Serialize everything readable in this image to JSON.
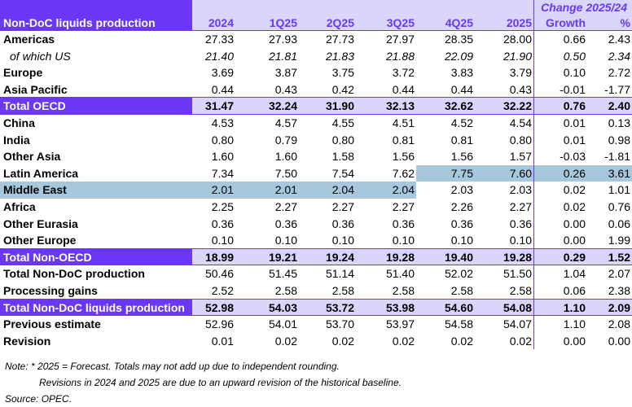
{
  "table": {
    "title": "Non-DoC liquids production",
    "change_header": "Change 2025/24",
    "columns": [
      "2024",
      "1Q25",
      "2Q25",
      "3Q25",
      "4Q25",
      "2025",
      "Growth",
      "%"
    ],
    "rows": [
      {
        "label": "Americas",
        "values": [
          "27.33",
          "27.93",
          "27.73",
          "27.97",
          "28.35",
          "28.00",
          "0.66",
          "2.43"
        ]
      },
      {
        "label": "of which US",
        "values": [
          "21.40",
          "21.81",
          "21.83",
          "21.88",
          "22.09",
          "21.90",
          "0.50",
          "2.34"
        ]
      },
      {
        "label": "Europe",
        "values": [
          "3.69",
          "3.87",
          "3.75",
          "3.72",
          "3.83",
          "3.79",
          "0.10",
          "2.72"
        ]
      },
      {
        "label": "Asia Pacific",
        "values": [
          "0.44",
          "0.43",
          "0.42",
          "0.44",
          "0.44",
          "0.43",
          "-0.01",
          "-1.77"
        ]
      },
      {
        "label": "Total OECD",
        "values": [
          "31.47",
          "32.24",
          "31.90",
          "32.13",
          "32.62",
          "32.22",
          "0.76",
          "2.40"
        ]
      },
      {
        "label": "China",
        "values": [
          "4.53",
          "4.57",
          "4.55",
          "4.51",
          "4.52",
          "4.54",
          "0.01",
          "0.13"
        ]
      },
      {
        "label": "India",
        "values": [
          "0.80",
          "0.79",
          "0.80",
          "0.81",
          "0.81",
          "0.80",
          "0.01",
          "0.98"
        ]
      },
      {
        "label": "Other Asia",
        "values": [
          "1.60",
          "1.60",
          "1.58",
          "1.56",
          "1.56",
          "1.57",
          "-0.03",
          "-1.81"
        ]
      },
      {
        "label": "Latin America",
        "values": [
          "7.34",
          "7.50",
          "7.54",
          "7.62",
          "7.75",
          "7.60",
          "0.26",
          "3.61"
        ]
      },
      {
        "label": "Middle East",
        "values": [
          "2.01",
          "2.01",
          "2.04",
          "2.04",
          "2.03",
          "2.03",
          "0.02",
          "1.01"
        ]
      },
      {
        "label": "Africa",
        "values": [
          "2.25",
          "2.27",
          "2.27",
          "2.27",
          "2.26",
          "2.27",
          "0.02",
          "0.76"
        ]
      },
      {
        "label": "Other Eurasia",
        "values": [
          "0.36",
          "0.36",
          "0.36",
          "0.36",
          "0.36",
          "0.36",
          "0.00",
          "0.06"
        ]
      },
      {
        "label": "Other Europe",
        "values": [
          "0.10",
          "0.10",
          "0.10",
          "0.10",
          "0.10",
          "0.10",
          "0.00",
          "1.99"
        ]
      },
      {
        "label": "Total Non-OECD",
        "values": [
          "18.99",
          "19.21",
          "19.24",
          "19.28",
          "19.40",
          "19.28",
          "0.29",
          "1.52"
        ]
      },
      {
        "label": "Total Non-DoC production",
        "values": [
          "50.46",
          "51.45",
          "51.14",
          "51.40",
          "52.02",
          "51.50",
          "1.04",
          "2.07"
        ]
      },
      {
        "label": "Processing gains",
        "values": [
          "2.52",
          "2.58",
          "2.58",
          "2.58",
          "2.58",
          "2.58",
          "0.06",
          "2.38"
        ]
      },
      {
        "label": "Total Non-DoC liquids production",
        "values": [
          "52.98",
          "54.03",
          "53.72",
          "53.98",
          "54.60",
          "54.08",
          "1.10",
          "2.09"
        ]
      },
      {
        "label": "Previous estimate",
        "values": [
          "52.96",
          "54.01",
          "53.70",
          "53.97",
          "54.58",
          "54.07",
          "1.10",
          "2.08"
        ]
      },
      {
        "label": "Revision",
        "values": [
          "0.01",
          "0.02",
          "0.02",
          "0.02",
          "0.02",
          "0.02",
          "0.00",
          "0.00"
        ]
      }
    ]
  },
  "notes": {
    "line1": "Note: * 2025 = Forecast. Totals may not add up due to independent rounding.",
    "line2": "Revisions in 2024 and 2025 are due to an upward revision of the historical baseline.",
    "source": "Source: OPEC."
  },
  "colors": {
    "accent": "#6a38f5",
    "accent_light": "#d9d5fb",
    "highlight": "#a7c7dd"
  }
}
